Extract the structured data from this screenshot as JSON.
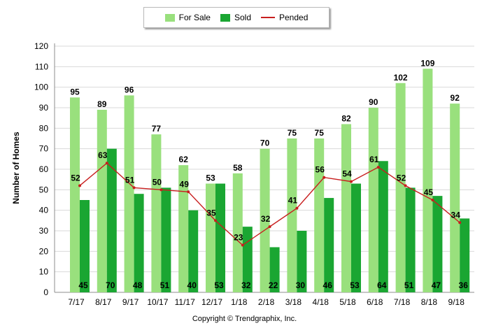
{
  "chart_data": {
    "type": "bar",
    "categories": [
      "7/17",
      "8/17",
      "9/17",
      "10/17",
      "11/17",
      "12/17",
      "1/18",
      "2/18",
      "3/18",
      "4/18",
      "5/18",
      "6/18",
      "7/18",
      "8/18",
      "9/18"
    ],
    "series": [
      {
        "name": "For Sale",
        "type": "bar",
        "color": "#99e07d",
        "values": [
          95,
          89,
          96,
          77,
          62,
          53,
          58,
          70,
          75,
          75,
          82,
          90,
          102,
          109,
          92
        ]
      },
      {
        "name": "Sold",
        "type": "bar",
        "color": "#1aa632",
        "values": [
          45,
          70,
          48,
          51,
          40,
          53,
          32,
          22,
          30,
          46,
          53,
          64,
          51,
          47,
          36
        ]
      },
      {
        "name": "Pended",
        "type": "line",
        "color": "#c81e1e",
        "values": [
          52,
          63,
          51,
          50,
          49,
          35,
          23,
          32,
          41,
          56,
          54,
          61,
          52,
          45,
          34
        ]
      }
    ],
    "ylabel": "Number of Homes",
    "ylim": [
      0,
      120
    ],
    "yticks": [
      0,
      10,
      20,
      30,
      40,
      50,
      60,
      70,
      80,
      90,
      100,
      110,
      120
    ],
    "grid": true,
    "legend": "top-center"
  },
  "copyright": "Copyright © Trendgraphix, Inc."
}
